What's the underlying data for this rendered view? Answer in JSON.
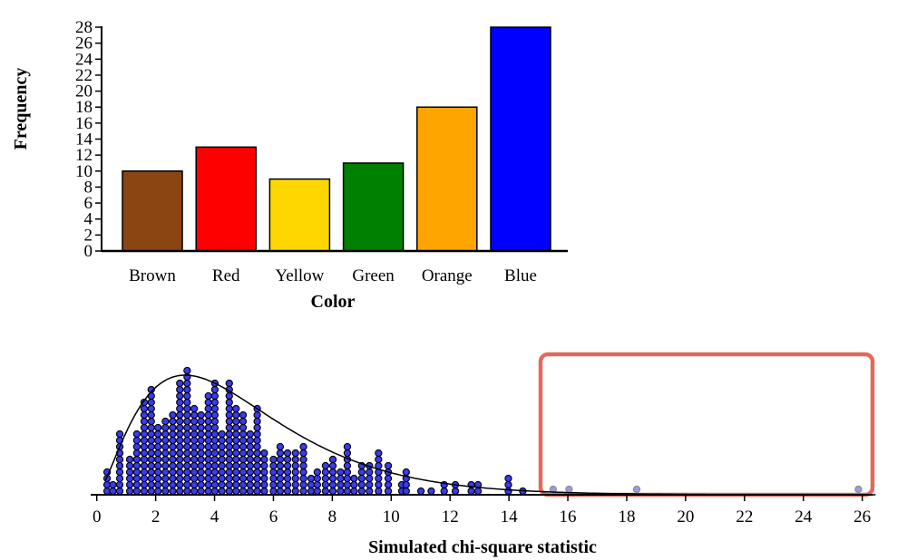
{
  "chart_data": [
    {
      "type": "bar",
      "xlabel": "Color",
      "ylabel": "Frequency",
      "categories": [
        "Brown",
        "Red",
        "Yellow",
        "Green",
        "Orange",
        "Blue"
      ],
      "values": [
        10,
        13,
        9,
        11,
        18,
        28
      ],
      "colors": [
        "#8B4513",
        "#FF0000",
        "#FFD700",
        "#008000",
        "#FFA500",
        "#0000FF"
      ],
      "ylim": [
        0,
        28
      ],
      "yticks": [
        0,
        2,
        4,
        6,
        8,
        10,
        12,
        14,
        16,
        18,
        20,
        22,
        24,
        26,
        28
      ],
      "grid": false
    },
    {
      "type": "dotplot",
      "xlabel": "Simulated chi-square statistic",
      "xlim": [
        0,
        26.5
      ],
      "xticks": [
        0,
        2,
        4,
        6,
        8,
        10,
        12,
        14,
        16,
        18,
        20,
        22,
        24,
        26
      ],
      "dot_color": "#3a3af0",
      "highlight_dot_color": "#9a9ae8",
      "highlight_box_color": "#e06b5d",
      "highlight_region": [
        15.25,
        26.5
      ],
      "stacks": [
        {
          "x": 0.35,
          "count": 4
        },
        {
          "x": 0.55,
          "count": 2
        },
        {
          "x": 0.78,
          "count": 10
        },
        {
          "x": 1.12,
          "count": 6
        },
        {
          "x": 1.36,
          "count": 10
        },
        {
          "x": 1.61,
          "count": 15
        },
        {
          "x": 1.85,
          "count": 17
        },
        {
          "x": 2.08,
          "count": 11
        },
        {
          "x": 2.33,
          "count": 12
        },
        {
          "x": 2.58,
          "count": 13
        },
        {
          "x": 2.82,
          "count": 18
        },
        {
          "x": 3.07,
          "count": 20
        },
        {
          "x": 3.31,
          "count": 14
        },
        {
          "x": 3.54,
          "count": 13
        },
        {
          "x": 3.79,
          "count": 16
        },
        {
          "x": 4.01,
          "count": 18
        },
        {
          "x": 4.25,
          "count": 10
        },
        {
          "x": 4.5,
          "count": 18
        },
        {
          "x": 4.73,
          "count": 14
        },
        {
          "x": 4.97,
          "count": 13
        },
        {
          "x": 5.21,
          "count": 10
        },
        {
          "x": 5.45,
          "count": 14
        },
        {
          "x": 5.69,
          "count": 7
        },
        {
          "x": 6.0,
          "count": 6
        },
        {
          "x": 6.23,
          "count": 8
        },
        {
          "x": 6.48,
          "count": 7
        },
        {
          "x": 6.75,
          "count": 7
        },
        {
          "x": 7.02,
          "count": 8
        },
        {
          "x": 7.28,
          "count": 3
        },
        {
          "x": 7.49,
          "count": 4
        },
        {
          "x": 7.77,
          "count": 5
        },
        {
          "x": 8.02,
          "count": 6
        },
        {
          "x": 8.28,
          "count": 4
        },
        {
          "x": 8.51,
          "count": 8
        },
        {
          "x": 8.74,
          "count": 3
        },
        {
          "x": 9.0,
          "count": 5
        },
        {
          "x": 9.26,
          "count": 5
        },
        {
          "x": 9.57,
          "count": 7
        },
        {
          "x": 9.9,
          "count": 5
        },
        {
          "x": 10.36,
          "count": 2
        },
        {
          "x": 10.51,
          "count": 4
        },
        {
          "x": 11.01,
          "count": 1
        },
        {
          "x": 11.36,
          "count": 1
        },
        {
          "x": 11.8,
          "count": 2
        },
        {
          "x": 12.18,
          "count": 2
        },
        {
          "x": 12.72,
          "count": 2
        },
        {
          "x": 12.95,
          "count": 2
        },
        {
          "x": 13.98,
          "count": 3
        },
        {
          "x": 14.47,
          "count": 1
        }
      ],
      "highlighted_points": [
        15.5,
        16.04,
        18.34,
        25.87
      ],
      "curve": {
        "distribution": "chi-square",
        "df": 5
      }
    }
  ]
}
